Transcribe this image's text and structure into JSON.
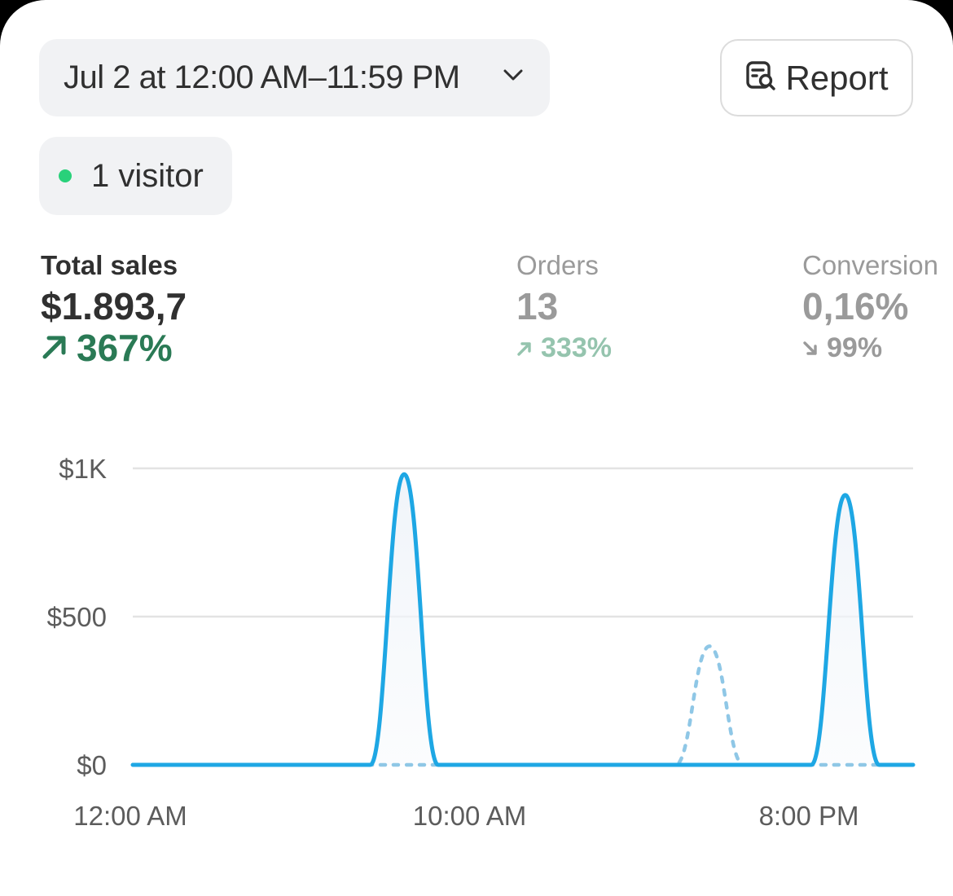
{
  "header": {
    "date_range_label": "Jul 2 at 12:00 AM–11:59 PM",
    "report_label": "Report"
  },
  "visitors": {
    "label": "1 visitor",
    "dot_color": "#29d17a"
  },
  "metrics": [
    {
      "label": "Total sales",
      "value": "$1.893,7",
      "change": "367%",
      "direction": "up",
      "change_color": "#2a7a55"
    },
    {
      "label": "Orders",
      "value": "13",
      "change": "333%",
      "direction": "up",
      "change_color": "#95c4ae"
    },
    {
      "label": "Conversion",
      "value": "0,16%",
      "change": "99%",
      "direction": "down",
      "change_color": "#9a9a9a"
    }
  ],
  "chart_data": {
    "type": "line",
    "x_range_hours": [
      0,
      23
    ],
    "ylim": [
      0,
      1000
    ],
    "yticks": [
      {
        "value": 0,
        "label": "$0"
      },
      {
        "value": 500,
        "label": "$500"
      },
      {
        "value": 1000,
        "label": "$1K"
      }
    ],
    "xticks": [
      {
        "hour": 0,
        "label": "12:00 AM"
      },
      {
        "hour": 10,
        "label": "10:00 AM"
      },
      {
        "hour": 20,
        "label": "8:00 PM"
      }
    ],
    "grid": true,
    "series": [
      {
        "style": "solid",
        "color": "#1ea7e4",
        "x": [
          0,
          1,
          2,
          3,
          4,
          5,
          6,
          7,
          8,
          9,
          10,
          11,
          12,
          13,
          14,
          15,
          16,
          17,
          18,
          19,
          20,
          21,
          22,
          23
        ],
        "values": [
          0,
          0,
          0,
          0,
          0,
          0,
          0,
          0,
          980,
          0,
          0,
          0,
          0,
          0,
          0,
          0,
          0,
          0,
          0,
          0,
          0,
          910,
          0,
          0
        ]
      },
      {
        "style": "dotted",
        "color": "#8fc7e6",
        "x": [
          0,
          1,
          2,
          3,
          4,
          5,
          6,
          7,
          8,
          9,
          10,
          11,
          12,
          13,
          14,
          15,
          16,
          17,
          18,
          19,
          20,
          21,
          22,
          23
        ],
        "values": [
          0,
          0,
          0,
          0,
          0,
          0,
          0,
          0,
          0,
          0,
          0,
          0,
          0,
          0,
          0,
          0,
          0,
          400,
          0,
          0,
          0,
          0,
          0,
          0
        ]
      }
    ]
  }
}
